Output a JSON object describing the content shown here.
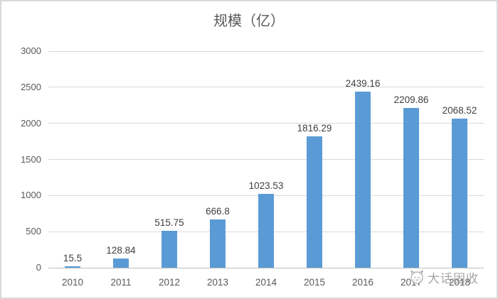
{
  "chart_data": {
    "type": "bar",
    "title": "规模（亿）",
    "categories": [
      "2010",
      "2011",
      "2012",
      "2013",
      "2014",
      "2015",
      "2016",
      "2017",
      "2018"
    ],
    "values": [
      15.5,
      128.84,
      515.75,
      666.8,
      1023.53,
      1816.29,
      2439.16,
      2209.86,
      2068.52
    ],
    "value_labels": [
      "15.5",
      "128.84",
      "515.75",
      "666.8",
      "1023.53",
      "1816.29",
      "2439.16",
      "2209.86",
      "2068.52"
    ],
    "yticks": [
      0,
      500,
      1000,
      1500,
      2000,
      2500,
      3000
    ],
    "ylim": [
      0,
      3000
    ],
    "xlabel": "",
    "ylabel": "",
    "grid": true,
    "legend_position": "none",
    "bar_color": "#5B9BD5"
  },
  "colors": {
    "bar": "#5B9BD5",
    "gridline": "#d9d9d9",
    "axis_line": "#bfbfbf",
    "label_text": "#404040",
    "tick_text": "#595959",
    "title_text": "#595959",
    "frame_border": "#d9d9d9",
    "watermark_text": "#8f8f8f"
  },
  "watermark": {
    "icon": "mascot-face-icon",
    "text": "大话固收"
  }
}
